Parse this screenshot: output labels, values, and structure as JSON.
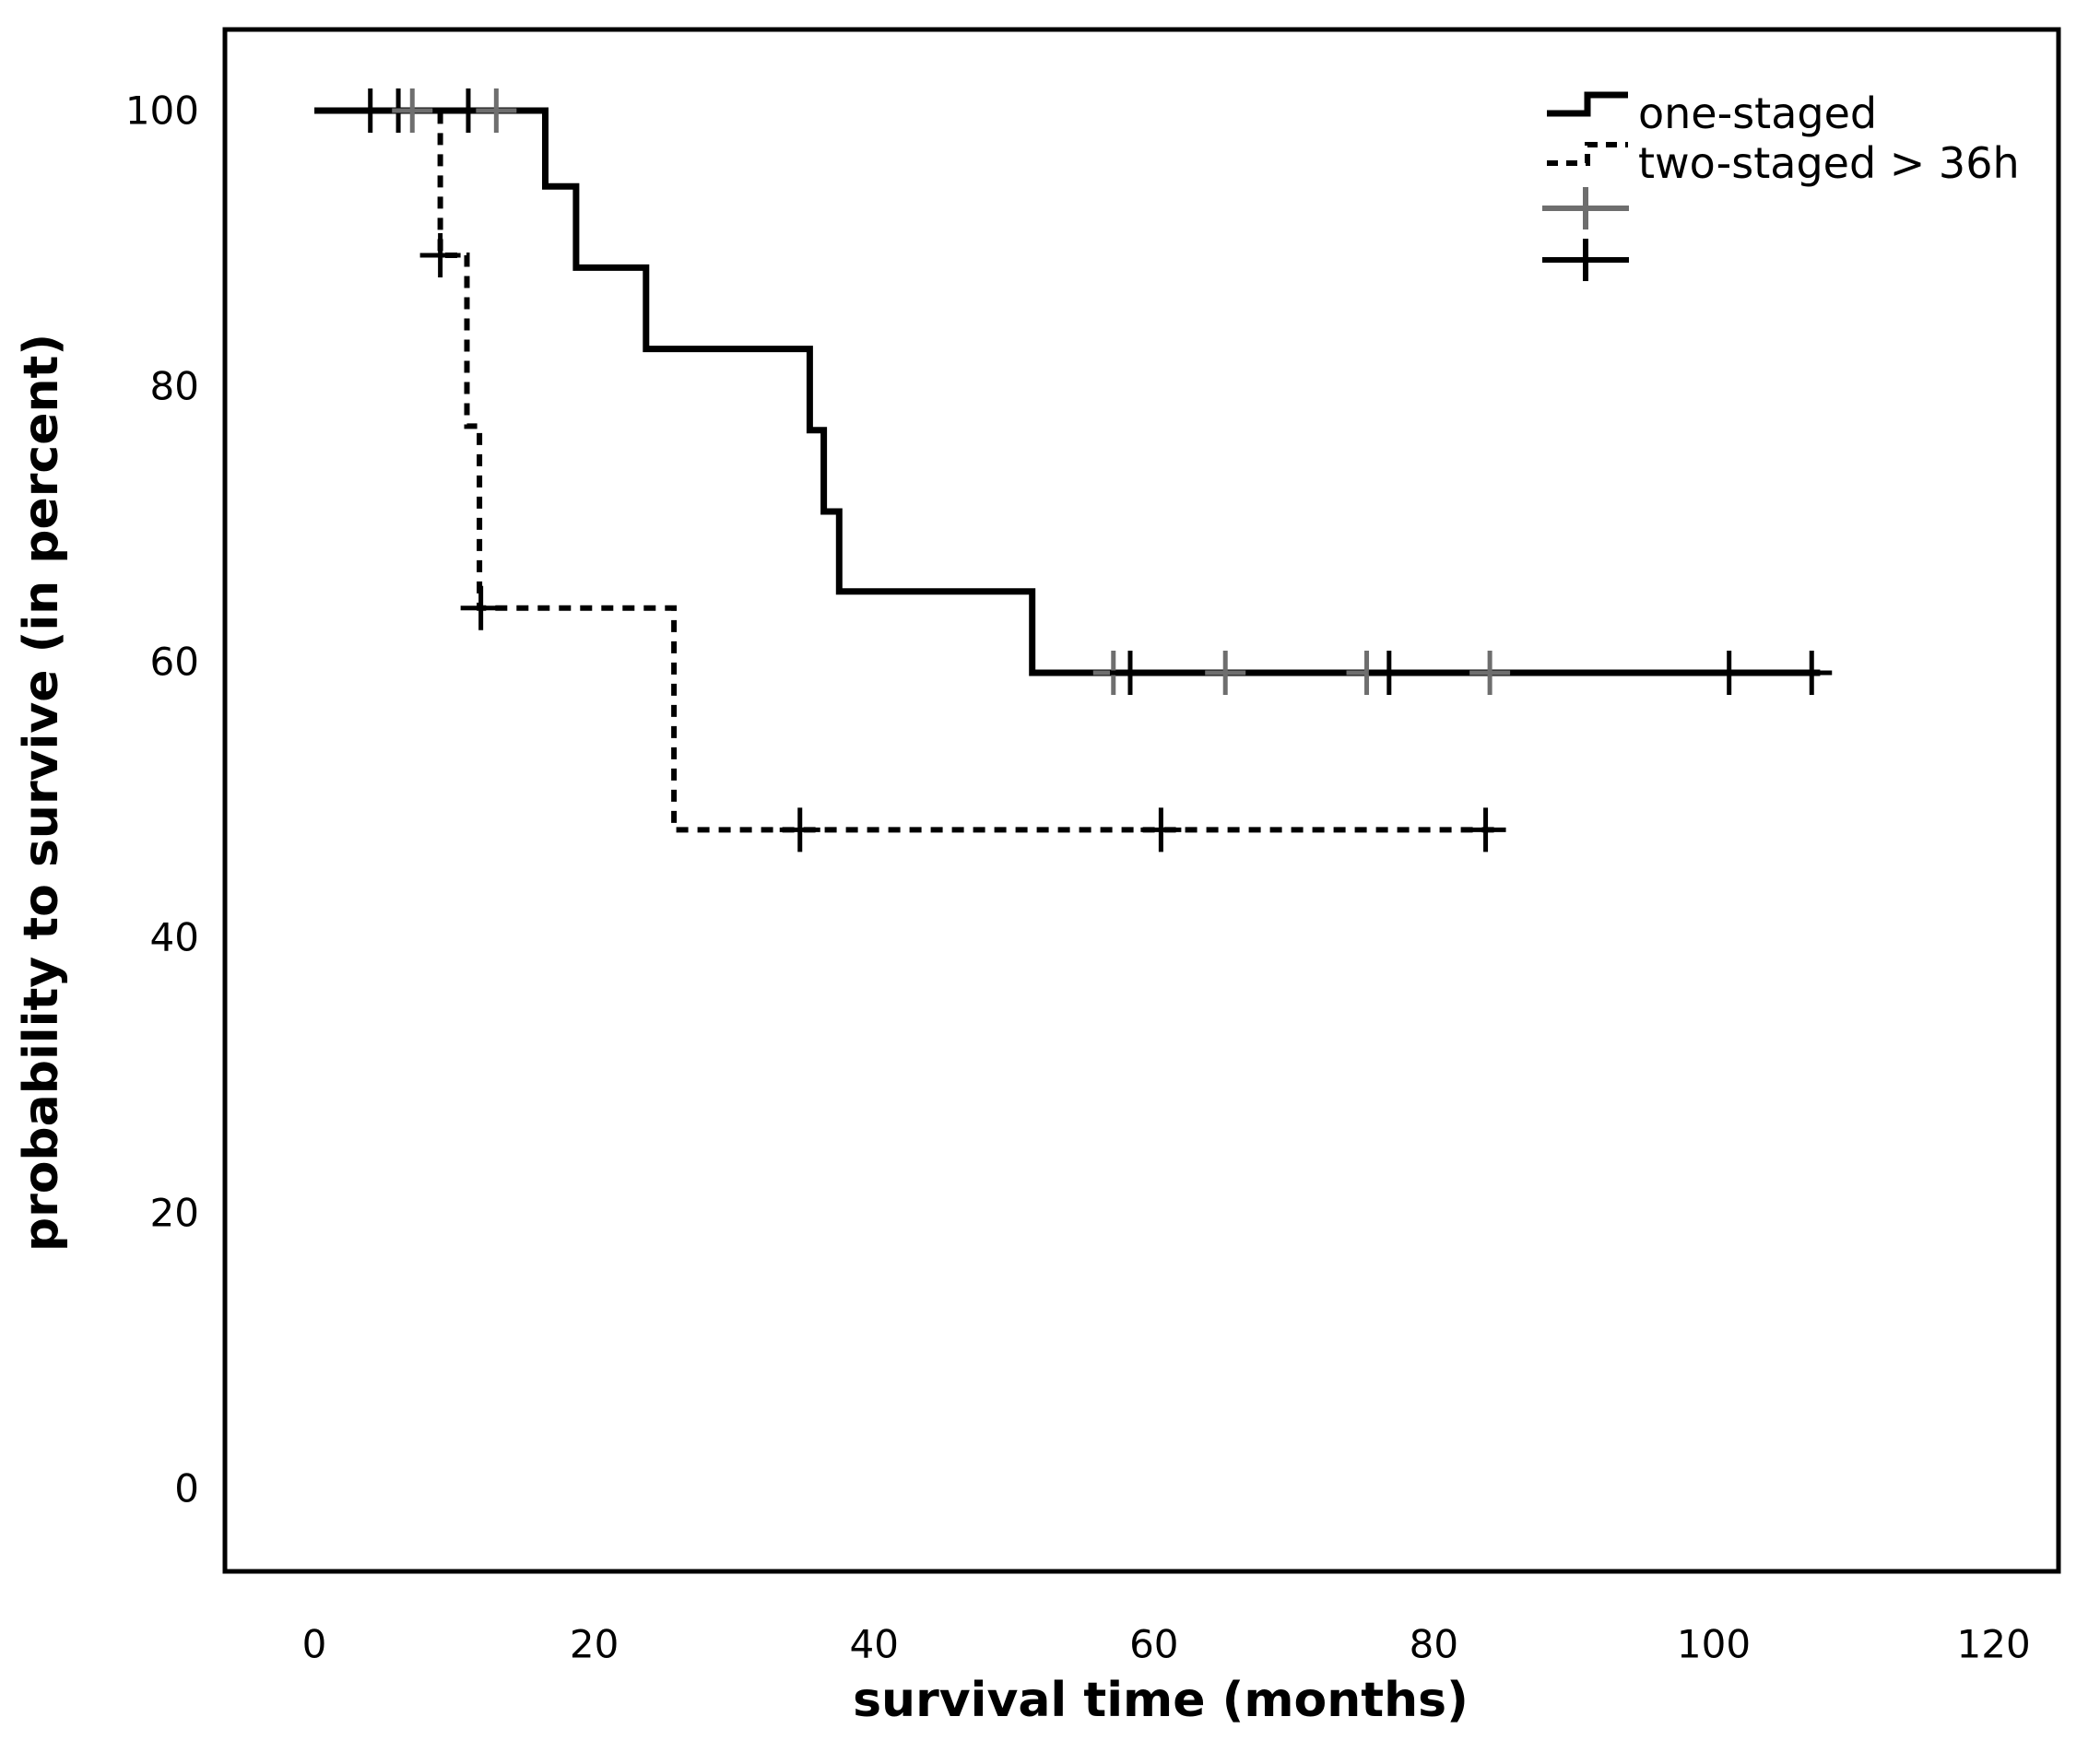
{
  "chart_data": {
    "type": "line",
    "subtype": "kaplan-meier-step-curves",
    "title": "",
    "xlabel": "survival time (months)",
    "ylabel": "probability to survive (in percent)",
    "xticks": [
      0,
      20,
      40,
      60,
      80,
      100,
      120
    ],
    "yticks": [
      100,
      80,
      60,
      40,
      20,
      0
    ],
    "xlim": [
      -6.5,
      124.5
    ],
    "ylim": [
      -6.5,
      106
    ],
    "grid": false,
    "legend_position": "top-right",
    "colors": {
      "line": "#000000",
      "censor_black": "#000000",
      "censor_gray": "#6e6e6e",
      "frame": "#000000",
      "background": "#ffffff"
    },
    "series": [
      {
        "name": "one-staged",
        "line_style": "solid",
        "color": "#000000",
        "steps": [
          [
            0,
            100
          ],
          [
            16.5,
            100
          ],
          [
            16.5,
            94.5
          ],
          [
            18.7,
            94.5
          ],
          [
            18.7,
            88.6
          ],
          [
            23.7,
            88.6
          ],
          [
            23.7,
            82.7
          ],
          [
            35.4,
            82.7
          ],
          [
            35.4,
            76.8
          ],
          [
            36.4,
            76.8
          ],
          [
            36.4,
            70.9
          ],
          [
            37.5,
            70.9
          ],
          [
            37.5,
            65.1
          ],
          [
            51.3,
            65.1
          ],
          [
            51.3,
            59.2
          ],
          [
            107.6,
            59.2
          ]
        ],
        "censor_marks": [
          {
            "t": 4,
            "s": 100,
            "shade": "black"
          },
          {
            "t": 6,
            "s": 100,
            "shade": "black"
          },
          {
            "t": 7,
            "s": 100,
            "shade": "gray"
          },
          {
            "t": 11,
            "s": 100,
            "shade": "black"
          },
          {
            "t": 13,
            "s": 100,
            "shade": "gray"
          },
          {
            "t": 57.1,
            "s": 59.2,
            "shade": "gray"
          },
          {
            "t": 58.3,
            "s": 59.2,
            "shade": "black"
          },
          {
            "t": 65.1,
            "s": 59.2,
            "shade": "gray"
          },
          {
            "t": 75.2,
            "s": 59.2,
            "shade": "gray"
          },
          {
            "t": 76.8,
            "s": 59.2,
            "shade": "black"
          },
          {
            "t": 84.0,
            "s": 59.2,
            "shade": "gray"
          },
          {
            "t": 101.1,
            "s": 59.2,
            "shade": "black"
          },
          {
            "t": 107.0,
            "s": 59.2,
            "shade": "black"
          }
        ]
      },
      {
        "name": "two-staged > 36h",
        "line_style": "dashed",
        "color": "#000000",
        "steps": [
          [
            0,
            100
          ],
          [
            9,
            100
          ],
          [
            9,
            89.5
          ],
          [
            10.9,
            89.5
          ],
          [
            10.9,
            77.1
          ],
          [
            11.8,
            77.1
          ],
          [
            11.8,
            63.9
          ],
          [
            25.7,
            63.9
          ],
          [
            25.7,
            47.8
          ],
          [
            84.9,
            47.8
          ]
        ],
        "censor_marks": [
          {
            "t": 9,
            "s": 89.5,
            "shade": "black"
          },
          {
            "t": 11.9,
            "s": 63.9,
            "shade": "black"
          },
          {
            "t": 34.7,
            "s": 47.8,
            "shade": "black"
          },
          {
            "t": 60.5,
            "s": 47.8,
            "shade": "black"
          },
          {
            "t": 83.7,
            "s": 47.8,
            "shade": "black"
          }
        ]
      }
    ],
    "legend": [
      {
        "symbol": "solid-step-line",
        "label": "one-staged"
      },
      {
        "symbol": "dashed-step-line",
        "label": "two-staged > 36h"
      },
      {
        "symbol": "plus-mark-gray",
        "label": ""
      },
      {
        "symbol": "plus-mark-black",
        "label": ""
      }
    ]
  }
}
